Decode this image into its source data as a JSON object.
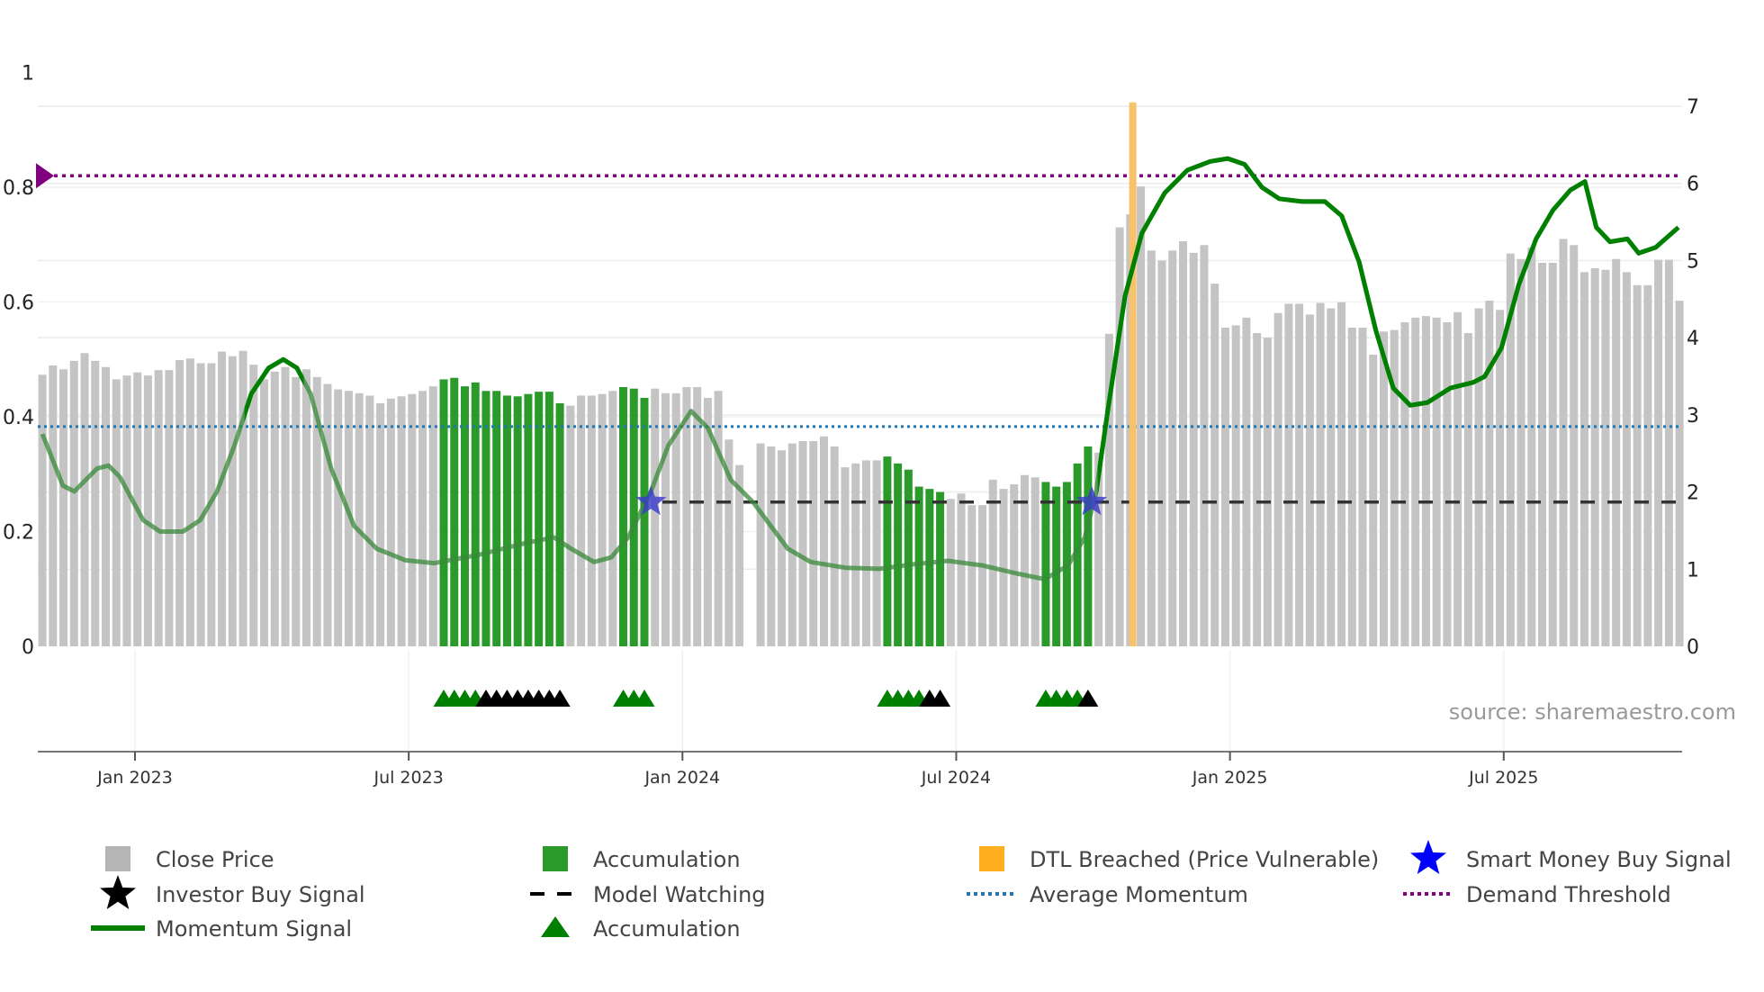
{
  "chart_data": {
    "type": "bar",
    "title": "",
    "x_unit": "months since Jan 2023",
    "xlim": [
      -2.13,
      33.91
    ],
    "left_axis": {
      "ylim": [
        0,
        1
      ],
      "ticks": [
        "0",
        "0.2",
        "0.4",
        "0.6",
        "0.8",
        "1"
      ],
      "tick_values": [
        0,
        0.2,
        0.4,
        0.6,
        0.8,
        1
      ]
    },
    "right_axis": {
      "ylim": [
        0,
        7
      ],
      "ticks": [
        "0",
        "1",
        "2",
        "3",
        "4",
        "5",
        "6",
        "7"
      ],
      "tick_values": [
        0,
        1,
        2,
        3,
        4,
        5,
        6,
        7
      ]
    },
    "x_ticks": [
      {
        "label": "Jan 2023",
        "month": 0
      },
      {
        "label": "Jul 2023",
        "month": 6
      },
      {
        "label": "Jan 2024",
        "month": 12
      },
      {
        "label": "Jul 2024",
        "month": 18
      },
      {
        "label": "Jan 2025",
        "month": 24
      },
      {
        "label": "Jul 2025",
        "month": 30
      }
    ],
    "close_price": {
      "name": "Close Price",
      "axis": "right",
      "x_start_month": -2.03,
      "x_step_month": 0.2315,
      "values": [
        3.52,
        3.64,
        3.59,
        3.7,
        3.8,
        3.7,
        3.62,
        3.46,
        3.51,
        3.55,
        3.51,
        3.58,
        3.58,
        3.71,
        3.73,
        3.67,
        3.67,
        3.82,
        3.76,
        3.83,
        3.65,
        3.46,
        3.56,
        3.62,
        3.49,
        3.59,
        3.49,
        3.4,
        3.33,
        3.31,
        3.28,
        3.25,
        3.15,
        3.21,
        3.24,
        3.27,
        3.31,
        3.37,
        3.46,
        3.48,
        3.37,
        3.42,
        3.31,
        3.31,
        3.25,
        3.24,
        3.27,
        3.3,
        3.3,
        3.15,
        3.12,
        3.25,
        3.25,
        3.27,
        3.31,
        3.36,
        3.34,
        3.22,
        3.34,
        3.28,
        3.28,
        3.36,
        3.36,
        3.22,
        3.31,
        2.68,
        2.35,
        null,
        2.63,
        2.59,
        2.54,
        2.63,
        2.66,
        2.66,
        2.72,
        2.59,
        2.32,
        2.37,
        2.41,
        2.41,
        2.46,
        2.37,
        2.29,
        2.07,
        2.04,
        2.0,
        1.91,
        1.98,
        1.83,
        1.83,
        2.16,
        2.04,
        2.1,
        2.22,
        2.19,
        2.13,
        2.07,
        2.13,
        2.37,
        2.59,
        2.51,
        4.05,
        5.43,
        5.6,
        5.96,
        5.13,
        5.0,
        5.13,
        5.25,
        5.1,
        5.2,
        4.7,
        4.13,
        4.16,
        4.26,
        4.06,
        4.0,
        4.32,
        4.44,
        4.44,
        4.3,
        4.45,
        4.38,
        4.46,
        4.13,
        4.13,
        3.78,
        4.08,
        4.1,
        4.2,
        4.26,
        4.28,
        4.26,
        4.2,
        4.33,
        4.06,
        4.38,
        4.48,
        4.36,
        5.09,
        5.02,
        5.17,
        4.97,
        4.97,
        5.28,
        5.2,
        4.85,
        4.9,
        4.88,
        5.02,
        4.85,
        4.68,
        4.68,
        5.01,
        5.01,
        4.48
      ],
      "accumulation_ranges": [
        [
          38,
          49
        ],
        [
          55,
          57
        ],
        [
          80,
          85
        ],
        [
          95,
          99
        ]
      ]
    },
    "momentum": {
      "name": "Momentum Signal",
      "axis": "left",
      "x": [
        -2.03,
        -1.58,
        -1.33,
        -0.83,
        -0.58,
        -0.33,
        0.18,
        0.55,
        1.05,
        1.43,
        1.8,
        2.18,
        2.55,
        2.93,
        3.25,
        3.55,
        3.85,
        4.3,
        4.8,
        5.3,
        5.93,
        6.56,
        7.56,
        8.56,
        9.18,
        9.56,
        10.06,
        10.44,
        10.81,
        11.31,
        11.69,
        12.19,
        12.56,
        13.06,
        13.56,
        14.31,
        14.81,
        15.57,
        16.32,
        17.07,
        17.82,
        18.57,
        19.32,
        19.94,
        20.45,
        20.82,
        21.07,
        21.32,
        21.7,
        22.07,
        22.57,
        23.07,
        23.57,
        23.95,
        24.32,
        24.7,
        25.08,
        25.58,
        26.08,
        26.45,
        26.83,
        27.2,
        27.58,
        27.95,
        28.33,
        28.83,
        29.33,
        29.58,
        29.95,
        30.33,
        30.71,
        31.08,
        31.46,
        31.78,
        32.03,
        32.33,
        32.71,
        32.96,
        33.33,
        33.83
      ],
      "y": [
        0.37,
        0.28,
        0.27,
        0.31,
        0.315,
        0.295,
        0.22,
        0.2,
        0.2,
        0.22,
        0.27,
        0.35,
        0.44,
        0.485,
        0.5,
        0.485,
        0.44,
        0.31,
        0.21,
        0.17,
        0.15,
        0.145,
        0.16,
        0.18,
        0.19,
        0.17,
        0.147,
        0.155,
        0.19,
        0.27,
        0.35,
        0.41,
        0.38,
        0.29,
        0.25,
        0.17,
        0.147,
        0.137,
        0.135,
        0.143,
        0.149,
        0.141,
        0.127,
        0.117,
        0.141,
        0.19,
        0.27,
        0.41,
        0.61,
        0.72,
        0.79,
        0.83,
        0.845,
        0.85,
        0.84,
        0.8,
        0.78,
        0.775,
        0.775,
        0.75,
        0.67,
        0.55,
        0.45,
        0.42,
        0.425,
        0.45,
        0.46,
        0.47,
        0.52,
        0.63,
        0.71,
        0.76,
        0.795,
        0.81,
        0.73,
        0.705,
        0.71,
        0.685,
        0.695,
        0.73
      ],
      "strong_ranges": [
        [
          2.4,
          3.7
        ],
        [
          21.1,
          33.9
        ]
      ]
    },
    "demand_threshold": {
      "name": "Demand Threshold",
      "axis": "left",
      "value": 0.82
    },
    "average_momentum": {
      "name": "Average Momentum",
      "axis": "left",
      "value": 0.383
    },
    "model_watching": {
      "name": "Model Watching",
      "axis": "right",
      "value": 1.87,
      "from_month": 11.56
    },
    "dtl_breached": {
      "name": "DTL Breached (Price Vulnerable)",
      "month": 21.87,
      "top": 7.05
    },
    "smart_money_buy": {
      "name": "Smart Money Buy Signal",
      "points": [
        {
          "month": 11.31,
          "value": 1.87
        },
        {
          "month": 20.97,
          "value": 1.87
        }
      ]
    },
    "signal_triangles": {
      "accumulation_bars": [
        38,
        39,
        40,
        41,
        55,
        56,
        57,
        80,
        81,
        82,
        83,
        95,
        96,
        97,
        98
      ],
      "investor_buy_bars": [
        42,
        43,
        44,
        45,
        46,
        47,
        48,
        49,
        84,
        85,
        99
      ]
    },
    "legend": [
      {
        "label": "Close Price",
        "symbol": "gray-square"
      },
      {
        "label": "Accumulation",
        "symbol": "green-square"
      },
      {
        "label": "DTL Breached (Price Vulnerable)",
        "symbol": "orange-square"
      },
      {
        "label": "Smart Money Buy Signal",
        "symbol": "blue-star"
      },
      {
        "label": "Investor Buy Signal",
        "symbol": "black-star"
      },
      {
        "label": "Model Watching",
        "symbol": "black-dash"
      },
      {
        "label": "Average Momentum",
        "symbol": "blue-dot"
      },
      {
        "label": "Demand Threshold",
        "symbol": "purple-dot"
      },
      {
        "label": "Momentum Signal",
        "symbol": "green-line"
      },
      {
        "label": "Accumulation",
        "symbol": "green-triangle"
      }
    ],
    "legend_placement": "bottom",
    "source": "source: sharemaestro.com",
    "colors": {
      "price": "#c4c4c4",
      "accumulation": "#2a9a2a",
      "momentum": "#008000",
      "dtl": "#f6c26b",
      "threshold": "#800080",
      "avg": "#1f77b4",
      "watch": "#333333",
      "star": "#0000ff",
      "black": "#000000"
    }
  }
}
